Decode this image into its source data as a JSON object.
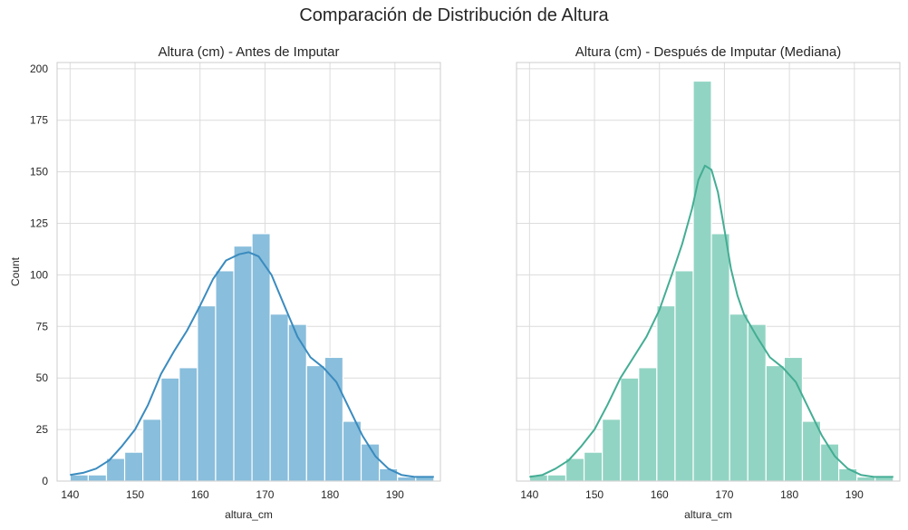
{
  "figure": {
    "suptitle": "Comparación de Distribución de Altura"
  },
  "chart_data": [
    {
      "type": "bar",
      "title": "Altura (cm) - Antes de Imputar",
      "xlabel": "altura_cm",
      "ylabel": "Count",
      "xlim": [
        138,
        197
      ],
      "ylim": [
        0,
        203
      ],
      "xticks": [
        140,
        150,
        160,
        170,
        180,
        190
      ],
      "yticks": [
        0,
        25,
        50,
        75,
        100,
        125,
        150,
        175,
        200
      ],
      "grid": true,
      "bar_color": "#89bedc",
      "line_color": "#3a8bbf",
      "bins": [
        {
          "x0": 140.0,
          "x1": 142.8,
          "count": 3
        },
        {
          "x0": 142.8,
          "x1": 145.6,
          "count": 3
        },
        {
          "x0": 145.6,
          "x1": 148.4,
          "count": 11
        },
        {
          "x0": 148.4,
          "x1": 151.2,
          "count": 14
        },
        {
          "x0": 151.2,
          "x1": 154.0,
          "count": 30
        },
        {
          "x0": 154.0,
          "x1": 156.8,
          "count": 50
        },
        {
          "x0": 156.8,
          "x1": 159.6,
          "count": 55
        },
        {
          "x0": 159.6,
          "x1": 162.4,
          "count": 85
        },
        {
          "x0": 162.4,
          "x1": 165.2,
          "count": 102
        },
        {
          "x0": 165.2,
          "x1": 168.0,
          "count": 114
        },
        {
          "x0": 168.0,
          "x1": 170.8,
          "count": 120
        },
        {
          "x0": 170.8,
          "x1": 173.6,
          "count": 81
        },
        {
          "x0": 173.6,
          "x1": 176.4,
          "count": 76
        },
        {
          "x0": 176.4,
          "x1": 179.2,
          "count": 56
        },
        {
          "x0": 179.2,
          "x1": 182.0,
          "count": 60
        },
        {
          "x0": 182.0,
          "x1": 184.8,
          "count": 29
        },
        {
          "x0": 184.8,
          "x1": 187.6,
          "count": 18
        },
        {
          "x0": 187.6,
          "x1": 190.4,
          "count": 6
        },
        {
          "x0": 190.4,
          "x1": 193.2,
          "count": 2
        },
        {
          "x0": 193.2,
          "x1": 196.0,
          "count": 2
        }
      ],
      "kde": {
        "x": [
          140,
          142,
          144,
          146,
          148,
          150,
          152,
          154,
          156,
          158,
          160,
          162,
          164,
          166,
          167.5,
          169,
          171,
          173,
          175,
          177,
          179,
          181,
          183,
          185,
          187,
          189,
          191,
          193,
          196
        ],
        "y": [
          3,
          4,
          6,
          10,
          17,
          25,
          37,
          52,
          63,
          73,
          85,
          98,
          107,
          110,
          111,
          109,
          100,
          85,
          70,
          60,
          55,
          48,
          35,
          22,
          12,
          6,
          3,
          2,
          2
        ]
      }
    },
    {
      "type": "bar",
      "title": "Altura (cm) - Después de Imputar (Mediana)",
      "xlabel": "altura_cm",
      "ylabel": "",
      "xlim": [
        138,
        197
      ],
      "ylim": [
        0,
        203
      ],
      "xticks": [
        140,
        150,
        160,
        170,
        180,
        190
      ],
      "yticks": [
        0,
        25,
        50,
        75,
        100,
        125,
        150,
        175,
        200
      ],
      "grid": true,
      "bar_color": "#92d4c3",
      "line_color": "#44ad94",
      "bins": [
        {
          "x0": 140.0,
          "x1": 142.8,
          "count": 3
        },
        {
          "x0": 142.8,
          "x1": 145.6,
          "count": 3
        },
        {
          "x0": 145.6,
          "x1": 148.4,
          "count": 11
        },
        {
          "x0": 148.4,
          "x1": 151.2,
          "count": 14
        },
        {
          "x0": 151.2,
          "x1": 154.0,
          "count": 30
        },
        {
          "x0": 154.0,
          "x1": 156.8,
          "count": 50
        },
        {
          "x0": 156.8,
          "x1": 159.6,
          "count": 55
        },
        {
          "x0": 159.6,
          "x1": 162.4,
          "count": 85
        },
        {
          "x0": 162.4,
          "x1": 165.2,
          "count": 102
        },
        {
          "x0": 165.2,
          "x1": 168.0,
          "count": 194
        },
        {
          "x0": 168.0,
          "x1": 170.8,
          "count": 120
        },
        {
          "x0": 170.8,
          "x1": 173.6,
          "count": 81
        },
        {
          "x0": 173.6,
          "x1": 176.4,
          "count": 76
        },
        {
          "x0": 176.4,
          "x1": 179.2,
          "count": 56
        },
        {
          "x0": 179.2,
          "x1": 182.0,
          "count": 60
        },
        {
          "x0": 182.0,
          "x1": 184.8,
          "count": 29
        },
        {
          "x0": 184.8,
          "x1": 187.6,
          "count": 18
        },
        {
          "x0": 187.6,
          "x1": 190.4,
          "count": 6
        },
        {
          "x0": 190.4,
          "x1": 193.2,
          "count": 2
        },
        {
          "x0": 193.2,
          "x1": 196.0,
          "count": 2
        }
      ],
      "kde": {
        "x": [
          140,
          142,
          144,
          146,
          148,
          150,
          152,
          154,
          156,
          158,
          160,
          162,
          163.5,
          165,
          166,
          167,
          168,
          169,
          170,
          171,
          172,
          173,
          175,
          177,
          179,
          181,
          183,
          185,
          187,
          189,
          191,
          193,
          196
        ],
        "y": [
          2,
          3,
          6,
          10,
          17,
          25,
          37,
          50,
          60,
          70,
          83,
          101,
          115,
          132,
          146,
          153,
          151,
          140,
          122,
          103,
          90,
          81,
          70,
          60,
          55,
          48,
          35,
          22,
          12,
          6,
          3,
          2,
          2
        ]
      }
    }
  ]
}
